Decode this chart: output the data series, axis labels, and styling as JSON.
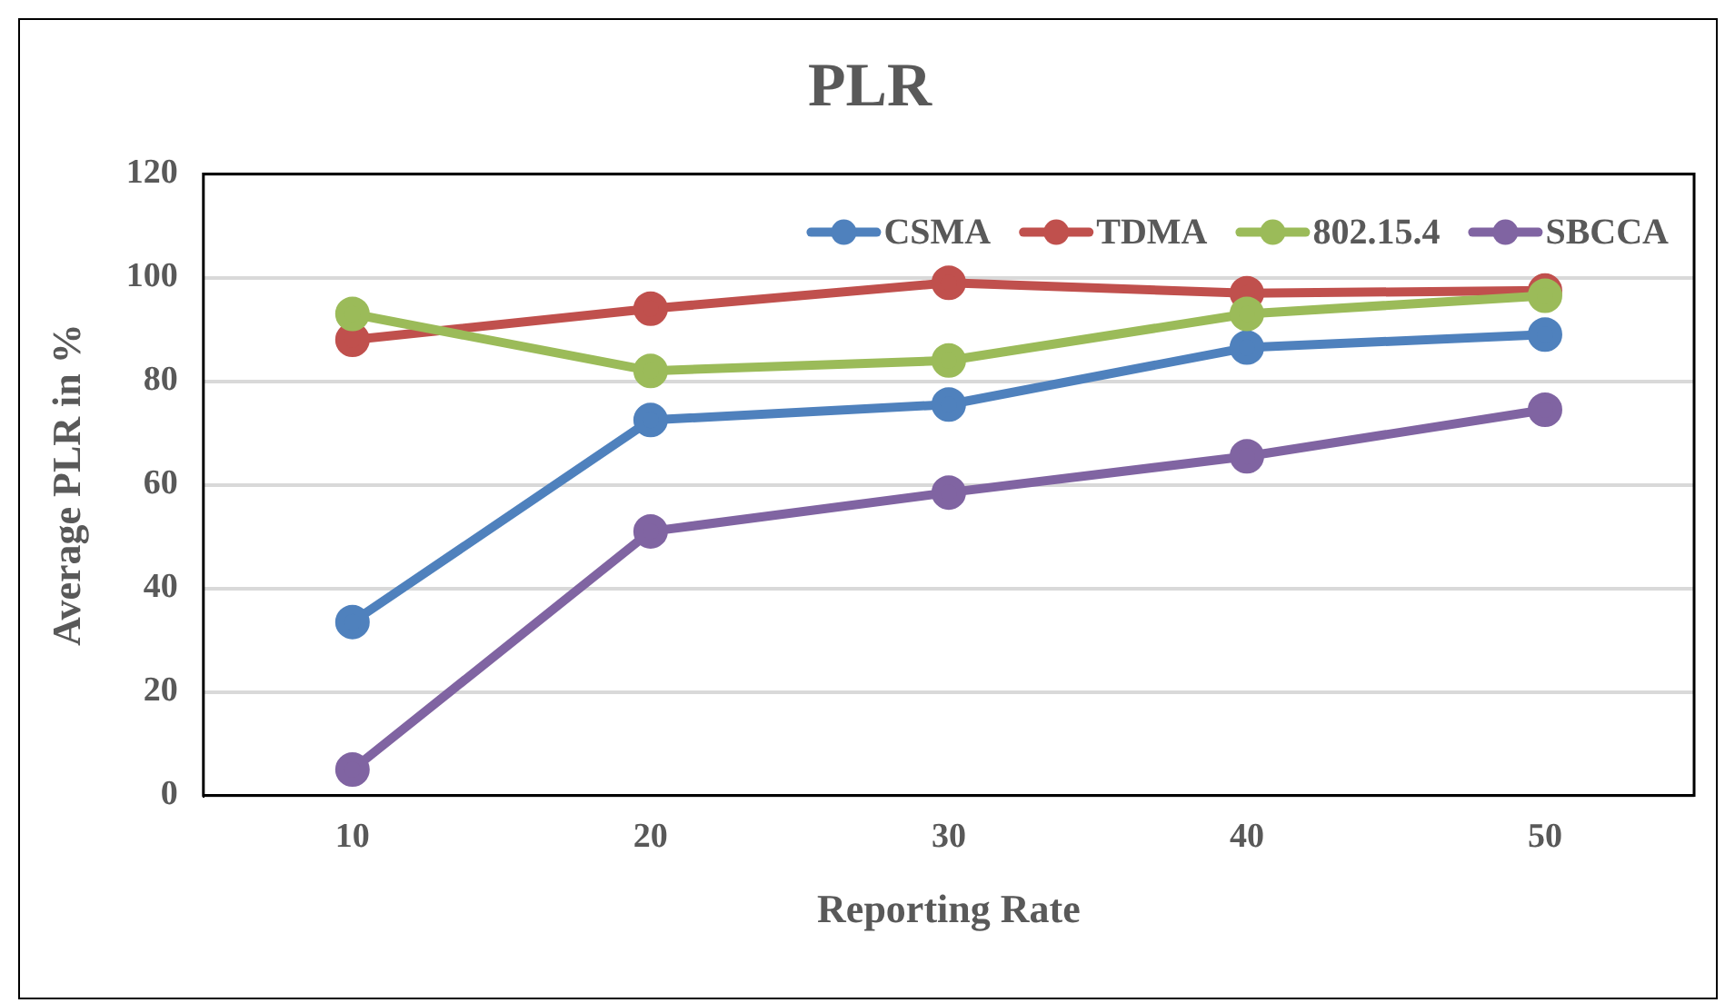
{
  "chart_data": {
    "type": "line",
    "title": "PLR",
    "xlabel": "Reporting Rate",
    "ylabel": "Average PLR in %",
    "categories": [
      "10",
      "20",
      "30",
      "40",
      "50"
    ],
    "series": [
      {
        "name": "CSMA",
        "color": "#4f81bd",
        "values": [
          33.5,
          72.5,
          75.5,
          86.5,
          89
        ]
      },
      {
        "name": "TDMA",
        "color": "#c0504d",
        "values": [
          88,
          94,
          99,
          97,
          97.5
        ]
      },
      {
        "name": "802.15.4",
        "color": "#9bbb59",
        "values": [
          93,
          82,
          84,
          93,
          96.5
        ]
      },
      {
        "name": "SBCCA",
        "color": "#8064a2",
        "values": [
          5,
          51,
          58.5,
          65.5,
          74.5
        ]
      }
    ],
    "ylim": [
      0,
      120
    ],
    "yticks": [
      0,
      20,
      40,
      60,
      80,
      100,
      120
    ],
    "grid": "y",
    "legend": "top right",
    "marker": "circle",
    "line_style": "solid"
  }
}
